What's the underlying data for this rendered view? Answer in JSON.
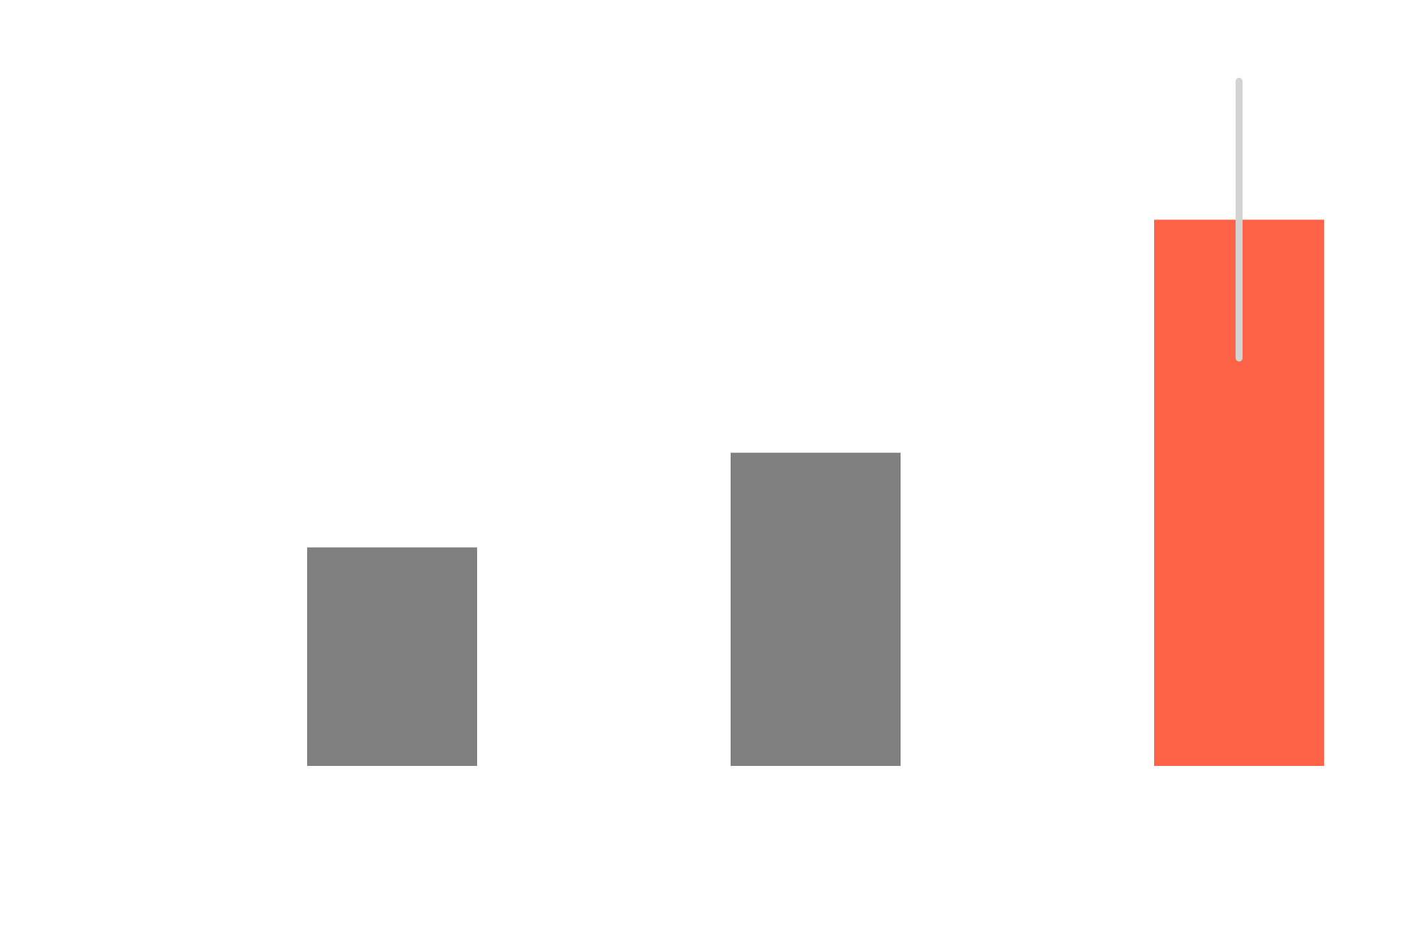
{
  "chart_data": {
    "type": "bar",
    "title": "",
    "xlabel": "",
    "ylabel": "",
    "categories": [
      "",
      "",
      ""
    ],
    "values": [
      30,
      43,
      75
    ],
    "error_bar": {
      "index": 2,
      "low": 56,
      "high": 94
    },
    "colors": {
      "default": "#808080",
      "highlight": "#ff6347",
      "error_bar": "#d3d3d3",
      "background": "#fefefe"
    },
    "highlight_index": 2,
    "ylim": [
      0,
      100
    ],
    "grid": false,
    "legend": "none"
  }
}
